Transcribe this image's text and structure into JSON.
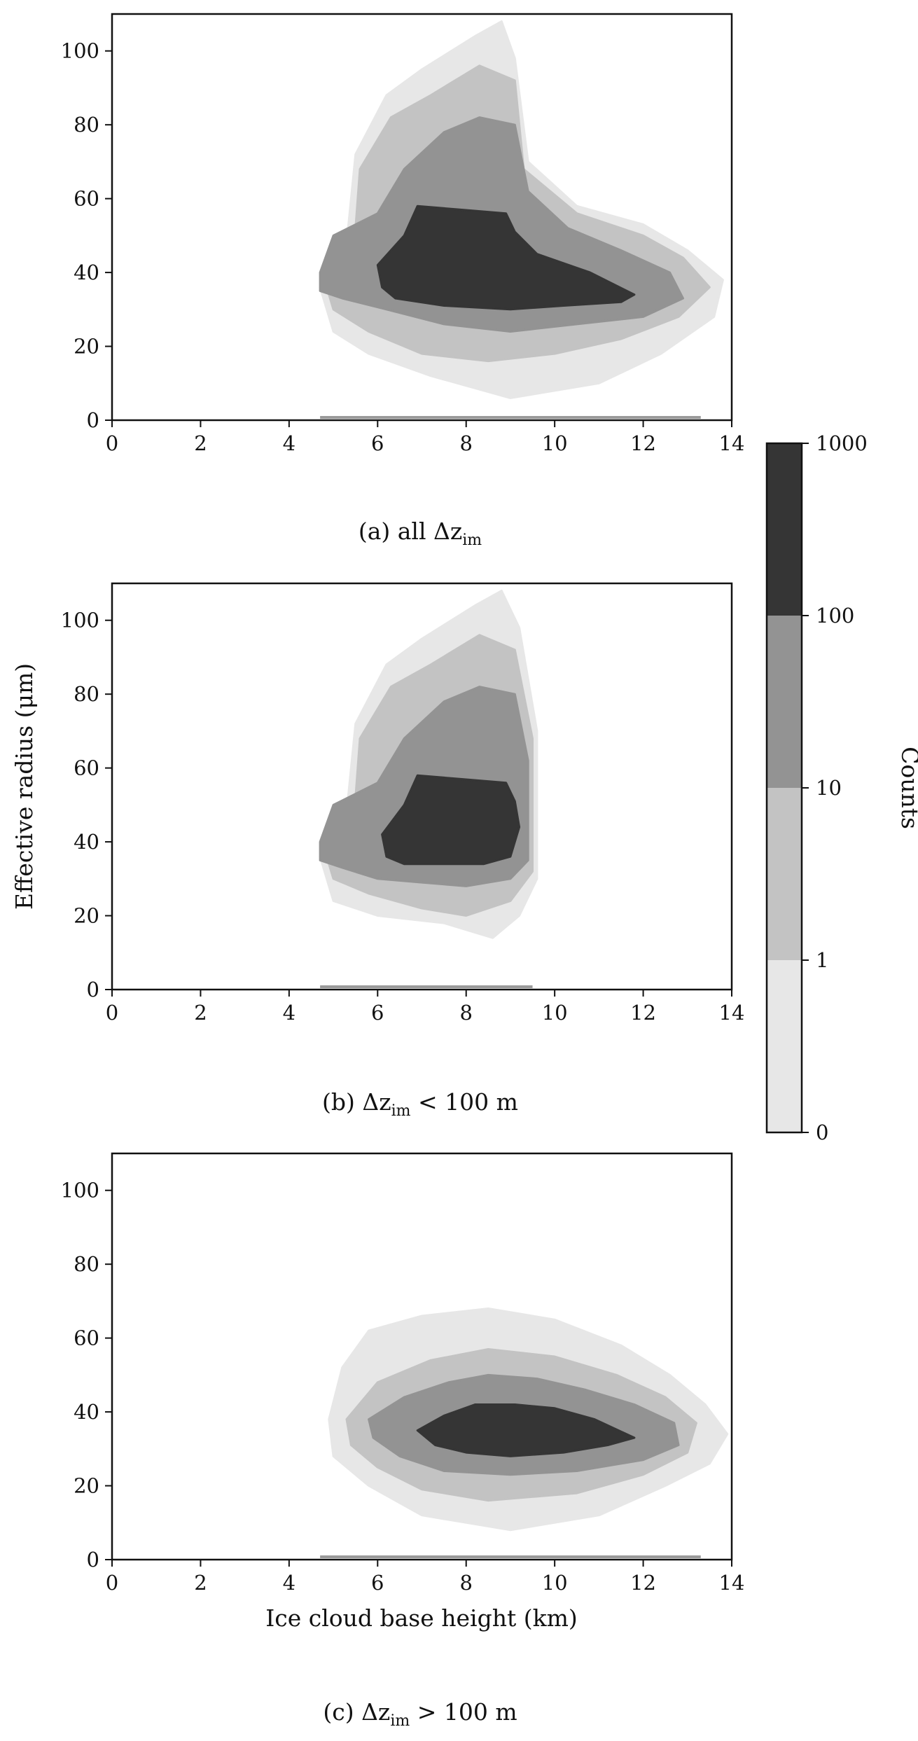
{
  "figure": {
    "ylabel": "Effective radius (μm)",
    "xlabel": "Ice cloud base height (km)",
    "colorbar": {
      "label": "Counts",
      "ticks": [
        "0",
        "1",
        "10",
        "100",
        "1000"
      ],
      "colors": [
        "#e7e7e7",
        "#c3c3c3",
        "#939393",
        "#353535"
      ]
    }
  },
  "chart_data": [
    {
      "type": "heatmap",
      "caption": "(a) all Δz",
      "caption_sub": "im",
      "caption_tail": "",
      "xlabel": "",
      "ylabel": "",
      "xlim": [
        0,
        14
      ],
      "ylim": [
        0,
        110
      ],
      "xticks": [
        "0",
        "2",
        "4",
        "6",
        "8",
        "10",
        "12",
        "14"
      ],
      "yticks": [
        "0",
        "20",
        "40",
        "60",
        "80",
        "100"
      ],
      "count_levels": [
        0,
        1,
        10,
        100,
        1000
      ],
      "regions": [
        {
          "level": 0,
          "outline": [
            [
              4.7,
              36
            ],
            [
              5.3,
              48
            ],
            [
              5.5,
              72
            ],
            [
              6.2,
              88
            ],
            [
              7.0,
              95
            ],
            [
              8.2,
              104
            ],
            [
              8.8,
              108
            ],
            [
              9.1,
              98
            ],
            [
              9.4,
              70
            ],
            [
              10.5,
              58
            ],
            [
              12.0,
              53
            ],
            [
              13.0,
              46
            ],
            [
              13.8,
              38
            ],
            [
              13.6,
              28
            ],
            [
              12.4,
              18
            ],
            [
              11.0,
              10
            ],
            [
              9.0,
              6
            ],
            [
              7.2,
              12
            ],
            [
              5.8,
              18
            ],
            [
              5.0,
              24
            ]
          ]
        },
        {
          "level": 1,
          "outline": [
            [
              4.8,
              38
            ],
            [
              5.5,
              52
            ],
            [
              5.6,
              68
            ],
            [
              6.3,
              82
            ],
            [
              7.2,
              88
            ],
            [
              8.3,
              96
            ],
            [
              9.1,
              92
            ],
            [
              9.3,
              68
            ],
            [
              10.5,
              56
            ],
            [
              12.0,
              50
            ],
            [
              12.9,
              44
            ],
            [
              13.5,
              36
            ],
            [
              12.8,
              28
            ],
            [
              11.5,
              22
            ],
            [
              10.0,
              18
            ],
            [
              8.5,
              16
            ],
            [
              7.0,
              18
            ],
            [
              5.8,
              24
            ],
            [
              5.0,
              30
            ]
          ]
        },
        {
          "level": 2,
          "outline": [
            [
              4.7,
              40
            ],
            [
              5.0,
              50
            ],
            [
              6.0,
              56
            ],
            [
              6.6,
              68
            ],
            [
              7.5,
              78
            ],
            [
              8.3,
              82
            ],
            [
              9.1,
              80
            ],
            [
              9.4,
              62
            ],
            [
              10.3,
              52
            ],
            [
              11.5,
              46
            ],
            [
              12.6,
              40
            ],
            [
              12.9,
              33
            ],
            [
              12.0,
              28
            ],
            [
              10.5,
              26
            ],
            [
              9.0,
              24
            ],
            [
              7.5,
              26
            ],
            [
              6.2,
              30
            ],
            [
              5.2,
              33
            ],
            [
              4.7,
              35
            ]
          ]
        },
        {
          "level": 3,
          "outline": [
            [
              6.1,
              36
            ],
            [
              6.0,
              42
            ],
            [
              6.6,
              50
            ],
            [
              6.9,
              58
            ],
            [
              7.9,
              57
            ],
            [
              8.9,
              56
            ],
            [
              9.1,
              51
            ],
            [
              9.6,
              45
            ],
            [
              10.8,
              40
            ],
            [
              11.8,
              34
            ],
            [
              11.5,
              32
            ],
            [
              10.2,
              31
            ],
            [
              9.0,
              30
            ],
            [
              7.5,
              31
            ],
            [
              6.4,
              33
            ]
          ]
        }
      ]
    },
    {
      "type": "heatmap",
      "caption": "(b) Δz",
      "caption_sub": "im",
      "caption_tail": " < 100 m",
      "xlabel": "",
      "ylabel": "Effective radius (μm)",
      "xlim": [
        0,
        14
      ],
      "ylim": [
        0,
        110
      ],
      "xticks": [
        "0",
        "2",
        "4",
        "6",
        "8",
        "10",
        "12",
        "14"
      ],
      "yticks": [
        "0",
        "20",
        "40",
        "60",
        "80",
        "100"
      ],
      "count_levels": [
        0,
        1,
        10,
        100,
        1000
      ],
      "regions": [
        {
          "level": 0,
          "outline": [
            [
              4.7,
              36
            ],
            [
              5.3,
              48
            ],
            [
              5.5,
              72
            ],
            [
              6.2,
              88
            ],
            [
              7.0,
              95
            ],
            [
              8.2,
              104
            ],
            [
              8.8,
              108
            ],
            [
              9.2,
              98
            ],
            [
              9.6,
              70
            ],
            [
              9.6,
              30
            ],
            [
              9.2,
              20
            ],
            [
              8.6,
              14
            ],
            [
              7.5,
              18
            ],
            [
              6.0,
              20
            ],
            [
              5.0,
              24
            ]
          ]
        },
        {
          "level": 1,
          "outline": [
            [
              4.8,
              38
            ],
            [
              5.5,
              52
            ],
            [
              5.6,
              68
            ],
            [
              6.3,
              82
            ],
            [
              7.2,
              88
            ],
            [
              8.3,
              96
            ],
            [
              9.1,
              92
            ],
            [
              9.5,
              68
            ],
            [
              9.5,
              32
            ],
            [
              9.0,
              24
            ],
            [
              8.0,
              20
            ],
            [
              7.0,
              22
            ],
            [
              5.8,
              26
            ],
            [
              5.0,
              30
            ]
          ]
        },
        {
          "level": 2,
          "outline": [
            [
              4.7,
              40
            ],
            [
              5.0,
              50
            ],
            [
              6.0,
              56
            ],
            [
              6.6,
              68
            ],
            [
              7.5,
              78
            ],
            [
              8.3,
              82
            ],
            [
              9.1,
              80
            ],
            [
              9.4,
              62
            ],
            [
              9.4,
              35
            ],
            [
              9.0,
              30
            ],
            [
              8.0,
              28
            ],
            [
              7.0,
              29
            ],
            [
              6.0,
              30
            ],
            [
              5.2,
              33
            ],
            [
              4.7,
              35
            ]
          ]
        },
        {
          "level": 3,
          "outline": [
            [
              6.2,
              36
            ],
            [
              6.1,
              42
            ],
            [
              6.6,
              50
            ],
            [
              6.9,
              58
            ],
            [
              7.9,
              57
            ],
            [
              8.9,
              56
            ],
            [
              9.1,
              51
            ],
            [
              9.2,
              44
            ],
            [
              9.0,
              36
            ],
            [
              8.4,
              34
            ],
            [
              7.4,
              34
            ],
            [
              6.6,
              34
            ]
          ]
        }
      ]
    },
    {
      "type": "heatmap",
      "caption": "(c) Δz",
      "caption_sub": "im",
      "caption_tail": " > 100 m",
      "xlabel": "Ice cloud base height (km)",
      "ylabel": "",
      "xlim": [
        0,
        14
      ],
      "ylim": [
        0,
        110
      ],
      "xticks": [
        "0",
        "2",
        "4",
        "6",
        "8",
        "10",
        "12",
        "14"
      ],
      "yticks": [
        "0",
        "20",
        "40",
        "60",
        "80",
        "100"
      ],
      "count_levels": [
        0,
        1,
        10,
        100,
        1000
      ],
      "regions": [
        {
          "level": 0,
          "outline": [
            [
              4.9,
              38
            ],
            [
              5.2,
              52
            ],
            [
              5.8,
              62
            ],
            [
              7.0,
              66
            ],
            [
              8.5,
              68
            ],
            [
              10.0,
              65
            ],
            [
              11.5,
              58
            ],
            [
              12.6,
              50
            ],
            [
              13.4,
              42
            ],
            [
              13.9,
              34
            ],
            [
              13.5,
              26
            ],
            [
              12.5,
              20
            ],
            [
              11.0,
              12
            ],
            [
              9.0,
              8
            ],
            [
              7.0,
              12
            ],
            [
              5.8,
              20
            ],
            [
              5.0,
              28
            ]
          ]
        },
        {
          "level": 1,
          "outline": [
            [
              5.3,
              38
            ],
            [
              6.0,
              48
            ],
            [
              7.2,
              54
            ],
            [
              8.5,
              57
            ],
            [
              10.0,
              55
            ],
            [
              11.4,
              50
            ],
            [
              12.5,
              44
            ],
            [
              13.2,
              37
            ],
            [
              13.0,
              29
            ],
            [
              12.0,
              23
            ],
            [
              10.5,
              18
            ],
            [
              8.5,
              16
            ],
            [
              7.0,
              19
            ],
            [
              6.0,
              25
            ],
            [
              5.4,
              31
            ]
          ]
        },
        {
          "level": 2,
          "outline": [
            [
              5.8,
              38
            ],
            [
              6.6,
              44
            ],
            [
              7.6,
              48
            ],
            [
              8.5,
              50
            ],
            [
              9.6,
              49
            ],
            [
              10.7,
              46
            ],
            [
              11.8,
              42
            ],
            [
              12.7,
              37
            ],
            [
              12.8,
              31
            ],
            [
              12.0,
              27
            ],
            [
              10.5,
              24
            ],
            [
              9.0,
              23
            ],
            [
              7.5,
              24
            ],
            [
              6.5,
              28
            ],
            [
              5.9,
              33
            ]
          ]
        },
        {
          "level": 3,
          "outline": [
            [
              6.9,
              35
            ],
            [
              7.5,
              39
            ],
            [
              8.2,
              42
            ],
            [
              9.1,
              42
            ],
            [
              10.0,
              41
            ],
            [
              10.9,
              38
            ],
            [
              11.8,
              33
            ],
            [
              11.2,
              31
            ],
            [
              10.2,
              29
            ],
            [
              9.0,
              28
            ],
            [
              8.0,
              29
            ],
            [
              7.3,
              31
            ]
          ]
        }
      ]
    }
  ]
}
